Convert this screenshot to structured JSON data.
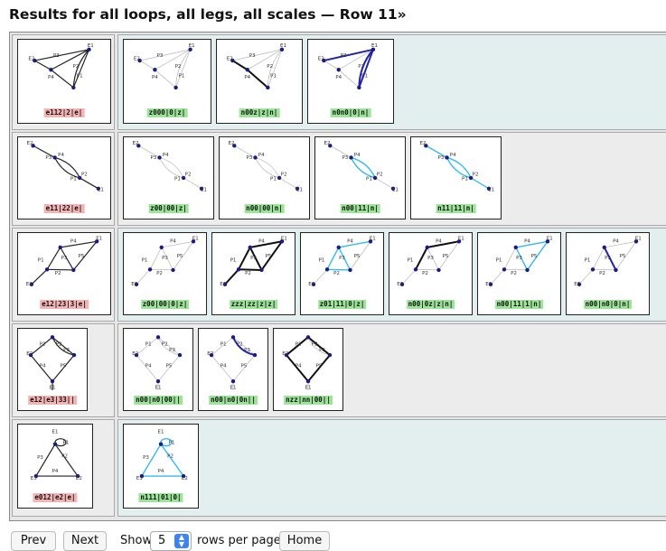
{
  "page": {
    "heading": "Results for all loops, all legs, all scales — Row 11»"
  },
  "colors": {
    "row_bg_a": "#e2efee",
    "row_bg_b": "#ececec",
    "pink_label": "#f3b4b4",
    "green_label": "#9de39a",
    "highlight_blue": "#2222aa",
    "highlight_cyan": "#33bbee"
  },
  "rows": [
    {
      "topology": "t1",
      "source": {
        "label": "e112|2|e|",
        "color": "pink"
      },
      "results": [
        {
          "label": "z000|0|z|",
          "color": "green",
          "style": "s0"
        },
        {
          "label": "n00z|z|n|",
          "color": "green",
          "style": "s1"
        },
        {
          "label": "n0n0|0|n|",
          "color": "green",
          "style": "s2"
        }
      ]
    },
    {
      "topology": "t2",
      "source": {
        "label": "e11|22|e|",
        "color": "pink"
      },
      "results": [
        {
          "label": "z00|00|z|",
          "color": "green",
          "style": "s0"
        },
        {
          "label": "n00|00|n|",
          "color": "green",
          "style": "s0"
        },
        {
          "label": "n00|11|n|",
          "color": "green",
          "style": "s3"
        },
        {
          "label": "n11|11|n|",
          "color": "green",
          "style": "s4"
        }
      ]
    },
    {
      "topology": "t3",
      "source": {
        "label": "e12|23|3|e|",
        "color": "pink"
      },
      "results": [
        {
          "label": "z00|00|0|z|",
          "color": "green",
          "style": "s0"
        },
        {
          "label": "zzz|zz|z|z|",
          "color": "green",
          "style": "s5"
        },
        {
          "label": "z01|11|0|z|",
          "color": "green",
          "style": "s6"
        },
        {
          "label": "n00|0z|z|n|",
          "color": "green",
          "style": "s7"
        },
        {
          "label": "n00|11|1|n|",
          "color": "green",
          "style": "s8"
        },
        {
          "label": "n00|n0|0|n|",
          "color": "green",
          "style": "s9"
        }
      ]
    },
    {
      "topology": "t4",
      "source": {
        "label": "e12|e3|33||",
        "color": "pink"
      },
      "results": [
        {
          "label": "n00|n0|00||",
          "color": "green",
          "style": "s0"
        },
        {
          "label": "n00|n0|0n||",
          "color": "green",
          "style": "s10"
        },
        {
          "label": "nzz|nn|00||",
          "color": "green",
          "style": "s11"
        }
      ]
    },
    {
      "topology": "t5",
      "source": {
        "label": "e012|e2|e|",
        "color": "pink"
      },
      "results": [
        {
          "label": "n111|01|0|",
          "color": "green",
          "style": "s12"
        }
      ]
    }
  ],
  "graph_text": {
    "t1": [
      "E1",
      "E2",
      "P3",
      "P4",
      "P2",
      "P1"
    ],
    "t2": [
      "E2",
      "P3",
      "P4",
      "P1",
      "P2",
      "E1"
    ],
    "t3": [
      "E2",
      "P4",
      "P3",
      "P1",
      "P5",
      "P2",
      "E1"
    ],
    "t4": [
      "E2",
      "P1",
      "P2",
      "P4",
      "P5",
      "P3",
      "E1"
    ],
    "t5": [
      "E1",
      "P1",
      "P3",
      "P2",
      "P4",
      "E3",
      "E2"
    ]
  },
  "nav": {
    "prev": "Prev",
    "next": "Next",
    "show": "Show",
    "rows_value": "5",
    "rows_suffix": "rows per page",
    "home": "Home"
  }
}
